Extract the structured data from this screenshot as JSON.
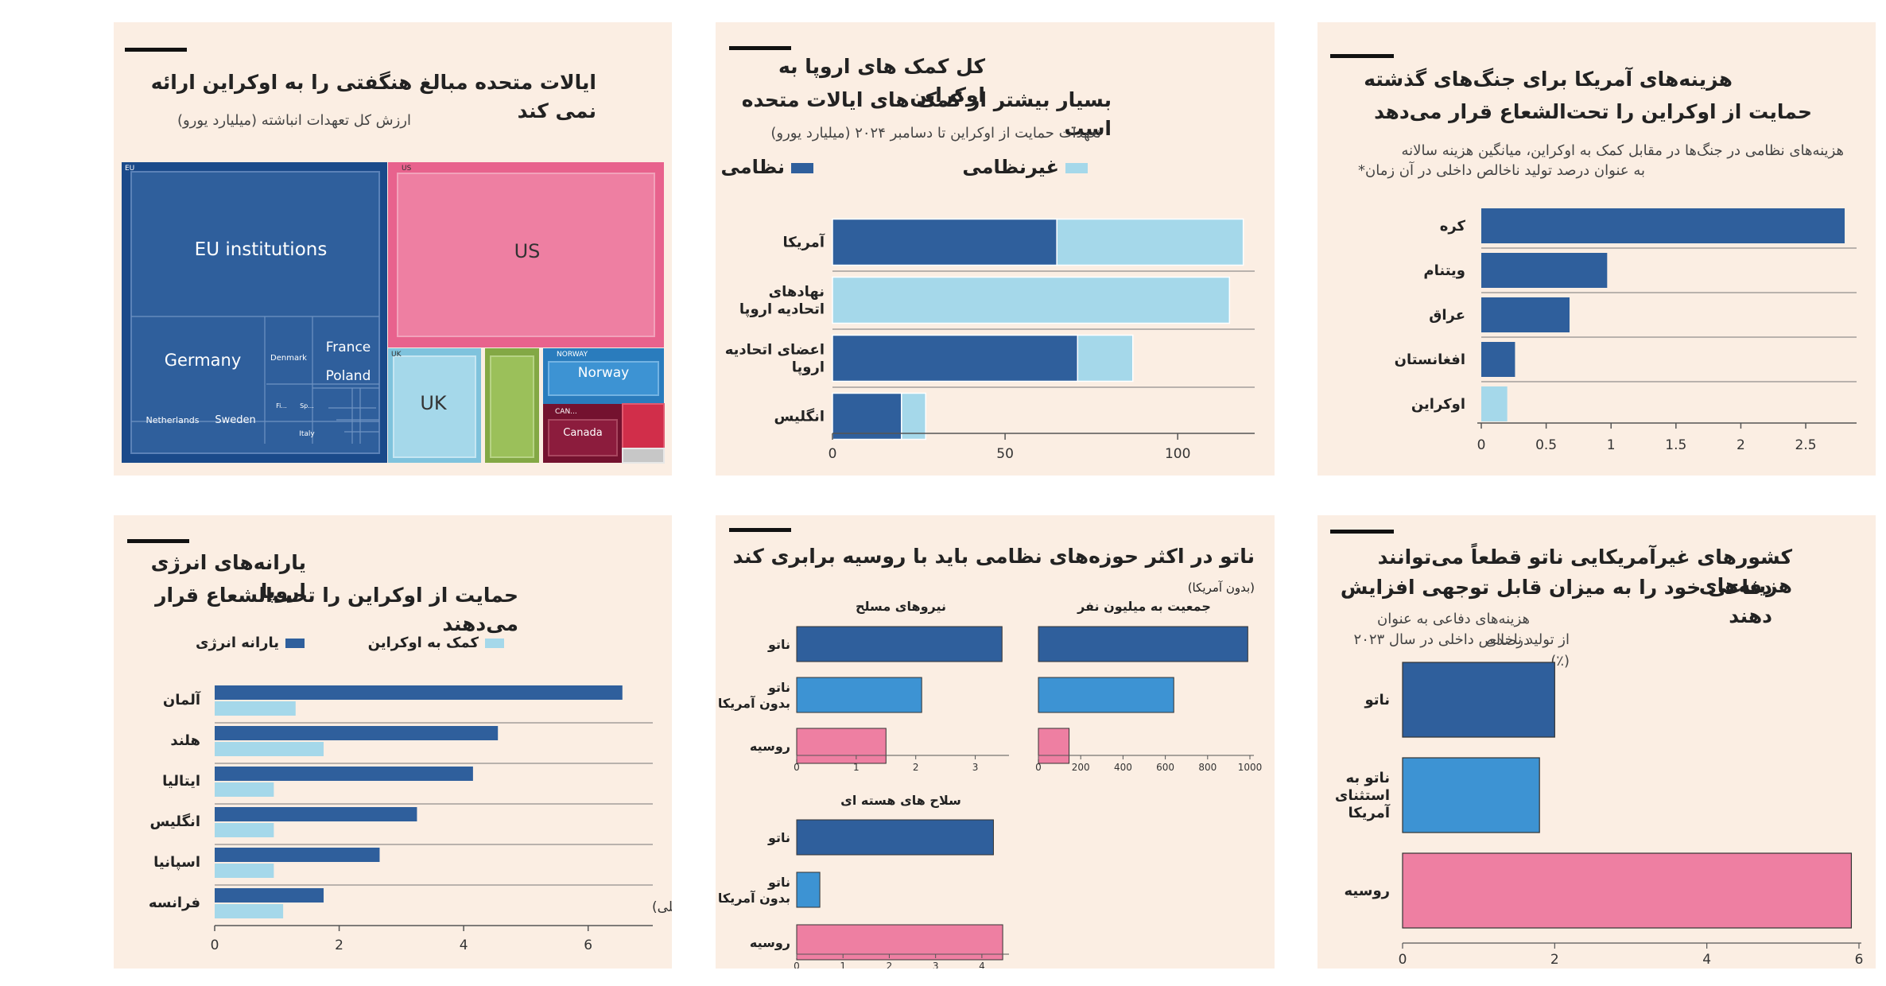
{
  "colors": {
    "panel_bg": "#fbeee3",
    "military": "#2f5f9c",
    "non_military": "#a5d8ea",
    "nato": "#2f5f9c",
    "nato_ex_us": "#3d93d3",
    "russia": "#ee7fa2",
    "grid": "#777777"
  },
  "charts": [
    {
      "id": "treemap",
      "title": "ایالات متحده مبالغ هنگفتی را به اوکراین ارائه نمی کند",
      "subtitle": "ارزش کل تعهدات انباشته (میلیارد یورو)",
      "chart_data": {
        "type": "treemap",
        "groups": [
          {
            "group_label": "EU",
            "color": "#2f5f9c",
            "border": "#1a4a8a",
            "items": [
              {
                "label": "EU institutions"
              },
              {
                "label": "Germany"
              },
              {
                "label": "France"
              },
              {
                "label": "Poland"
              },
              {
                "label": "Denmark"
              },
              {
                "label": "Netherlands"
              },
              {
                "label": "Sweden"
              },
              {
                "label": "Italy"
              },
              {
                "label": "Fi..."
              },
              {
                "label": "Sp..."
              }
            ]
          },
          {
            "group_label": "US",
            "color": "#ee7fa2",
            "border": "#e8628d",
            "items": [
              {
                "label": "US"
              }
            ]
          },
          {
            "group_label": "UK",
            "color": "#a5d8ea",
            "border": "#7fc3dd",
            "items": [
              {
                "label": "UK"
              }
            ]
          },
          {
            "group_label": "",
            "color": "#9bc05a",
            "border": "#83a845",
            "items": [
              {
                "label": ""
              }
            ]
          },
          {
            "group_label": "NORWAY",
            "color": "#3d93d3",
            "border": "#2a7cbd",
            "items": [
              {
                "label": "Norway"
              }
            ]
          },
          {
            "group_label": "CAN...",
            "color": "#8c1c3d",
            "border": "#74122f",
            "items": [
              {
                "label": "Canada"
              }
            ]
          },
          {
            "group_label": "",
            "color": "#d12e4a",
            "border": "#b5213b",
            "items": [
              {
                "label": ""
              }
            ]
          }
        ]
      }
    },
    {
      "id": "eu-vs-us",
      "title_lines": [
        "کل کمک های اروپا به اوکراین",
        "بسیار بیشتر از کمک های ایالات متحده است"
      ],
      "subtitle": "تعهدات حمایت از اوکراین تا دسامبر ۲۰۲۴ (میلیارد یورو)",
      "legend": [
        {
          "label": "نظامی",
          "color": "#2f5f9c"
        },
        {
          "label": "غیرنظامی",
          "color": "#a5d8ea"
        }
      ],
      "chart_data": {
        "type": "bar",
        "orientation": "horizontal",
        "stacked": true,
        "categories": [
          "آمریکا",
          "نهادهای اتحادیه اروپا",
          "اعضای اتحادیه اروپا",
          "انگلیس"
        ],
        "category_lines": [
          [
            "آمریکا"
          ],
          [
            "نهادهای",
            "اتحادیه اروپا"
          ],
          [
            "اعضای اتحادیه",
            "اروپا"
          ],
          [
            "انگلیس"
          ]
        ],
        "series": [
          {
            "name": "نظامی",
            "values": [
              65,
              0,
              71,
              20
            ]
          },
          {
            "name": "غیرنظامی",
            "values": [
              54,
              115,
              16,
              7
            ]
          }
        ],
        "xlim": [
          0,
          120
        ],
        "ticks": [
          0,
          50,
          100
        ]
      }
    },
    {
      "id": "past-wars",
      "title_lines": [
        "هزینه‌های آمریکا برای جنگ‌های گذشته",
        "حمایت از اوکراین را تحت‌الشعاع قرار می‌دهد"
      ],
      "subtitle_lines": [
        "هزینه‌های نظامی در جنگ‌ها در مقابل کمک به اوکراین، میانگین هزینه سالانه",
        "به عنوان درصد تولید ناخالص داخلی در آن زمان*"
      ],
      "chart_data": {
        "type": "bar",
        "orientation": "horizontal",
        "categories": [
          "کره",
          "ویتنام",
          "عراق",
          "افغانستان",
          "اوکراین"
        ],
        "values": [
          2.8,
          0.97,
          0.68,
          0.26,
          0.2
        ],
        "colors": [
          "#2f5f9c",
          "#2f5f9c",
          "#2f5f9c",
          "#2f5f9c",
          "#a5d8ea"
        ],
        "xlim": [
          0,
          2.8
        ],
        "ticks": [
          "0",
          "0.5",
          "1",
          "1.5",
          "2",
          "2.5"
        ]
      }
    },
    {
      "id": "energy-subsidies",
      "title_lines": [
        "یارانه‌های انرژی اروپا",
        "حمایت از اوکراین را تحت‌الشعاع قرار می‌دهند"
      ],
      "legend": [
        {
          "label": "یارانه انرژی",
          "color": "#2f5f9c"
        },
        {
          "label": "کمک به اوکراین",
          "color": "#a5d8ea"
        }
      ],
      "axis_title": "تعهدات مالی (٪ تولید ناخالص داخلی)",
      "chart_data": {
        "type": "bar",
        "orientation": "horizontal",
        "grouped": true,
        "categories": [
          "آلمان",
          "هلند",
          "ایتالیا",
          "انگلیس",
          "اسپانیا",
          "فرانسه"
        ],
        "series": [
          {
            "name": "یارانه انرژی",
            "values": [
              6.55,
              4.55,
              4.15,
              3.25,
              2.65,
              1.75
            ]
          },
          {
            "name": "کمک به اوکراین",
            "values": [
              1.3,
              1.75,
              0.95,
              0.95,
              0.95,
              1.1
            ]
          }
        ],
        "xlim": [
          0,
          7
        ],
        "ticks": [
          0,
          2,
          4,
          6
        ]
      }
    },
    {
      "id": "nato-vs-russia",
      "title": "ناتو در اکثر حوزه‌های نظامی باید با روسیه برابری کند",
      "title_note": "(بدون آمریکا)",
      "chart_data": [
        {
          "type": "bar",
          "orientation": "horizontal",
          "title": "نیروهای مسلح",
          "categories": [
            "ناتو",
            "ناتو بدون آمریکا",
            "روسیه"
          ],
          "category_lines": [
            [
              "ناتو"
            ],
            [
              "ناتو",
              "بدون آمریکا"
            ],
            [
              "روسیه"
            ]
          ],
          "values": [
            3.45,
            2.1,
            1.5
          ],
          "xlim": [
            0,
            3.5
          ],
          "ticks": [
            0,
            1,
            2,
            3
          ]
        },
        {
          "type": "bar",
          "orientation": "horizontal",
          "title": "جمعیت به میلیون نفر",
          "categories": [
            "ناتو",
            "ناتو بدون آمریکا",
            "روسیه"
          ],
          "values": [
            990,
            640,
            145
          ],
          "xlim": [
            0,
            1000
          ],
          "ticks": [
            0,
            200,
            400,
            600,
            800,
            1000
          ]
        },
        {
          "type": "bar",
          "orientation": "horizontal",
          "title": "سلاح های هسته ای",
          "categories": [
            "ناتو",
            "ناتو بدون آمریکا",
            "روسیه"
          ],
          "category_lines": [
            [
              "ناتو"
            ],
            [
              "ناتو",
              "بدون آمریکا"
            ],
            [
              "روسیه"
            ]
          ],
          "values": [
            4.25,
            0.5,
            4.45
          ],
          "xlim": [
            0,
            4.5
          ],
          "ticks": [
            0,
            1,
            2,
            3,
            4
          ]
        }
      ]
    },
    {
      "id": "defence-spending",
      "title_lines": [
        "کشورهای غیرآمریکایی ناتو قطعاً می‌توانند هزینه‌های",
        "دفاعی خود را به میزان قابل توجهی افزایش دهند"
      ],
      "subtitle_lines": [
        "هزینه‌های دفاعی به عنوان درصدی",
        "از تولید ناخالص داخلی در سال ۲۰۲۳ (٪)"
      ],
      "chart_data": {
        "type": "bar",
        "orientation": "horizontal",
        "categories": [
          "ناتو",
          "ناتو به استثنای آمریکا",
          "روسیه"
        ],
        "category_lines": [
          [
            "ناتو"
          ],
          [
            "ناتو به",
            "استثنای",
            "آمریکا"
          ],
          [
            "روسیه"
          ]
        ],
        "values": [
          2.0,
          1.8,
          5.9
        ],
        "xlim": [
          0,
          6
        ],
        "ticks": [
          0,
          2,
          4,
          6
        ]
      }
    }
  ]
}
